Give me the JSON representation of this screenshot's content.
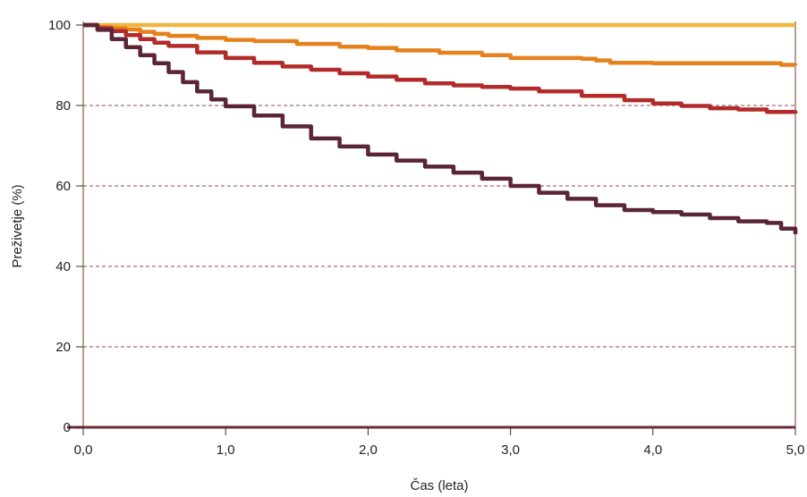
{
  "chart_data": {
    "type": "line",
    "title": "",
    "xlabel": "Čas (leta)",
    "ylabel": "Preživetje (%)",
    "xlim": [
      0,
      5
    ],
    "ylim": [
      0,
      100
    ],
    "x_ticks": [
      0,
      1,
      2,
      3,
      4,
      5
    ],
    "x_tick_labels": [
      "0,0",
      "1,0",
      "2,0",
      "3,0",
      "4,0",
      "5,0"
    ],
    "y_ticks": [
      0,
      20,
      40,
      60,
      80,
      100
    ],
    "y_tick_labels": [
      "0",
      "20",
      "40",
      "60",
      "80",
      "100"
    ],
    "grid": "horizontal dashed",
    "legend": "none",
    "series": [
      {
        "color": "#F0B63F",
        "x": [
          0,
          5
        ],
        "y": [
          100,
          100
        ]
      },
      {
        "color": "#E6821E",
        "x": [
          0,
          0.1,
          0.2,
          0.3,
          0.4,
          0.5,
          0.6,
          0.8,
          1.0,
          1.2,
          1.5,
          1.8,
          2.0,
          2.2,
          2.5,
          2.8,
          3.0,
          3.5,
          3.6,
          3.7,
          4.0,
          4.5,
          4.8,
          4.9,
          5.0
        ],
        "y": [
          100,
          99.5,
          99.2,
          98.9,
          98.3,
          97.8,
          97.3,
          96.8,
          96.3,
          96.0,
          95.3,
          94.6,
          94.3,
          93.7,
          93.1,
          92.5,
          91.8,
          91.6,
          91.2,
          90.6,
          90.5,
          90.5,
          90.5,
          90.1,
          90.0
        ]
      },
      {
        "color": "#B22B2A",
        "x": [
          0,
          0.1,
          0.2,
          0.3,
          0.4,
          0.5,
          0.6,
          0.8,
          1.0,
          1.2,
          1.4,
          1.6,
          1.8,
          2.0,
          2.2,
          2.4,
          2.6,
          2.8,
          3.0,
          3.2,
          3.5,
          3.8,
          4.0,
          4.2,
          4.4,
          4.6,
          4.8,
          5.0
        ],
        "y": [
          100,
          99.2,
          98.5,
          97.5,
          96.5,
          95.6,
          94.8,
          93.2,
          91.8,
          90.6,
          89.7,
          88.9,
          88.0,
          87.2,
          86.4,
          85.5,
          85.0,
          84.6,
          84.2,
          83.5,
          82.4,
          81.3,
          80.5,
          79.9,
          79.3,
          79.0,
          78.4,
          78.0
        ]
      },
      {
        "color": "#5A2535",
        "x": [
          0,
          0.1,
          0.2,
          0.3,
          0.4,
          0.5,
          0.6,
          0.7,
          0.8,
          0.9,
          1.0,
          1.2,
          1.4,
          1.6,
          1.8,
          2.0,
          2.2,
          2.4,
          2.6,
          2.8,
          3.0,
          3.2,
          3.4,
          3.6,
          3.8,
          4.0,
          4.2,
          4.4,
          4.6,
          4.8,
          4.9,
          5.0
        ],
        "y": [
          100,
          98.8,
          96.5,
          94.5,
          92.5,
          90.5,
          88.3,
          85.8,
          83.5,
          81.5,
          79.8,
          77.5,
          74.8,
          71.8,
          69.8,
          67.8,
          66.3,
          64.8,
          63.3,
          61.8,
          60.0,
          58.3,
          56.8,
          55.2,
          54.0,
          53.5,
          52.9,
          52.0,
          51.2,
          50.8,
          49.4,
          48.0
        ]
      }
    ]
  }
}
